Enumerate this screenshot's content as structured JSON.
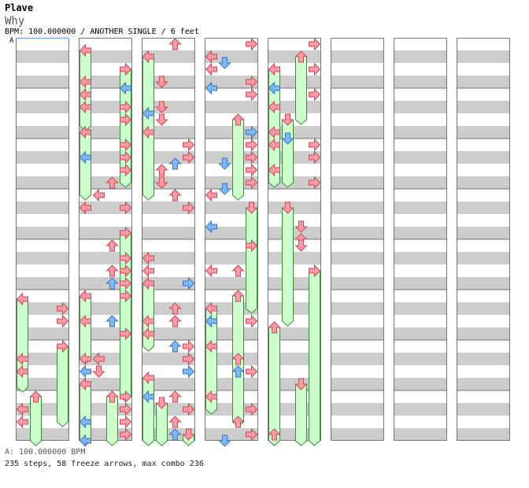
{
  "header": {
    "artist": "Plave",
    "song": "Why",
    "info": "BPM: 100.000000 / ANOTHER SINGLE / 6 feet",
    "bpm_marker": "A"
  },
  "footer": {
    "bpm_line": "A: 100.000000 BPM",
    "stats_line": "235 steps, 58 freeze arrows, max combo 236"
  },
  "colors": {
    "stripe": "#cccccc",
    "border": "#777777",
    "arrow_red": "#ff9aa6",
    "arrow_red_stroke": "#c44b5a",
    "arrow_blue": "#7fb8f5",
    "arrow_blue_stroke": "#3a74c0",
    "freeze_fill": "#ccffcc",
    "freeze_stroke": "#3c8a3c",
    "bpm_line": "#7eb0e8"
  },
  "chart_data": {
    "type": "step-chart",
    "columns": 8,
    "measures_per_column": 8,
    "lanes": [
      "left",
      "down",
      "up",
      "right"
    ],
    "rows_per_measure": 16,
    "total_steps": 235,
    "freeze_arrows": 58,
    "max_combo": 236,
    "notes": [
      {
        "c": 0,
        "lane": 0,
        "row": 83,
        "type": "red",
        "dir": "left",
        "hold": 7
      },
      {
        "c": 0,
        "lane": 3,
        "row": 86,
        "type": "red",
        "dir": "right"
      },
      {
        "c": 0,
        "lane": 3,
        "row": 90,
        "type": "red",
        "dir": "right"
      },
      {
        "c": 0,
        "lane": 3,
        "row": 98,
        "type": "red",
        "dir": "right",
        "hold": 6
      },
      {
        "c": 0,
        "lane": 0,
        "row": 102,
        "type": "red",
        "dir": "left"
      },
      {
        "c": 0,
        "lane": 0,
        "row": 106,
        "type": "red",
        "dir": "left"
      },
      {
        "c": 0,
        "lane": 1,
        "row": 114,
        "type": "red",
        "dir": "up",
        "hold": 5
      },
      {
        "c": 0,
        "lane": 0,
        "row": 118,
        "type": "red",
        "dir": "left"
      },
      {
        "c": 0,
        "lane": 0,
        "row": 122,
        "type": "red",
        "dir": "left"
      },
      {
        "c": 1,
        "lane": 0,
        "row": 4,
        "type": "red",
        "dir": "left",
        "hold": 6
      },
      {
        "c": 1,
        "lane": 3,
        "row": 10,
        "type": "red",
        "dir": "right",
        "hold": 5
      },
      {
        "c": 1,
        "lane": 0,
        "row": 14,
        "type": "red",
        "dir": "left"
      },
      {
        "c": 1,
        "lane": 3,
        "row": 16,
        "type": "blue",
        "dir": "left"
      },
      {
        "c": 1,
        "lane": 0,
        "row": 18,
        "type": "red",
        "dir": "left"
      },
      {
        "c": 1,
        "lane": 0,
        "row": 22,
        "type": "red",
        "dir": "left"
      },
      {
        "c": 1,
        "lane": 3,
        "row": 22,
        "type": "red",
        "dir": "right"
      },
      {
        "c": 1,
        "lane": 3,
        "row": 26,
        "type": "red",
        "dir": "right",
        "hold": 5
      },
      {
        "c": 1,
        "lane": 0,
        "row": 30,
        "type": "red",
        "dir": "left",
        "hold": 5
      },
      {
        "c": 1,
        "lane": 3,
        "row": 34,
        "type": "red",
        "dir": "right"
      },
      {
        "c": 1,
        "lane": 0,
        "row": 38,
        "type": "blue",
        "dir": "left"
      },
      {
        "c": 1,
        "lane": 3,
        "row": 38,
        "type": "red",
        "dir": "right"
      },
      {
        "c": 1,
        "lane": 3,
        "row": 42,
        "type": "red",
        "dir": "right"
      },
      {
        "c": 1,
        "lane": 2,
        "row": 46,
        "type": "red",
        "dir": "up"
      },
      {
        "c": 1,
        "lane": 1,
        "row": 50,
        "type": "red",
        "dir": "left"
      },
      {
        "c": 1,
        "lane": 0,
        "row": 54,
        "type": "red",
        "dir": "left"
      },
      {
        "c": 1,
        "lane": 3,
        "row": 54,
        "type": "red",
        "dir": "right"
      },
      {
        "c": 1,
        "lane": 3,
        "row": 62,
        "type": "red",
        "dir": "right",
        "hold": 5
      },
      {
        "c": 1,
        "lane": 2,
        "row": 66,
        "type": "red",
        "dir": "up"
      },
      {
        "c": 1,
        "lane": 3,
        "row": 70,
        "type": "red",
        "dir": "right"
      },
      {
        "c": 1,
        "lane": 2,
        "row": 74,
        "type": "red",
        "dir": "up"
      },
      {
        "c": 1,
        "lane": 3,
        "row": 74,
        "type": "red",
        "dir": "right"
      },
      {
        "c": 1,
        "lane": 2,
        "row": 78,
        "type": "blue",
        "dir": "up"
      },
      {
        "c": 1,
        "lane": 3,
        "row": 78,
        "type": "red",
        "dir": "right"
      },
      {
        "c": 1,
        "lane": 0,
        "row": 82,
        "type": "red",
        "dir": "left",
        "hold": 5
      },
      {
        "c": 1,
        "lane": 3,
        "row": 82,
        "type": "red",
        "dir": "right",
        "hold": 5
      },
      {
        "c": 1,
        "lane": 0,
        "row": 90,
        "type": "red",
        "dir": "left"
      },
      {
        "c": 1,
        "lane": 2,
        "row": 90,
        "type": "blue",
        "dir": "up"
      },
      {
        "c": 1,
        "lane": 3,
        "row": 94,
        "type": "red",
        "dir": "right",
        "hold": 5
      },
      {
        "c": 1,
        "lane": 0,
        "row": 102,
        "type": "red",
        "dir": "left"
      },
      {
        "c": 1,
        "lane": 1,
        "row": 102,
        "type": "red",
        "dir": "left"
      },
      {
        "c": 1,
        "lane": 0,
        "row": 106,
        "type": "blue",
        "dir": "left"
      },
      {
        "c": 1,
        "lane": 1,
        "row": 106,
        "type": "red",
        "dir": "down"
      },
      {
        "c": 1,
        "lane": 0,
        "row": 110,
        "type": "red",
        "dir": "left",
        "hold": 5
      },
      {
        "c": 1,
        "lane": 2,
        "row": 114,
        "type": "red",
        "dir": "up",
        "hold": 4
      },
      {
        "c": 1,
        "lane": 3,
        "row": 114,
        "type": "red",
        "dir": "right"
      },
      {
        "c": 1,
        "lane": 3,
        "row": 118,
        "type": "red",
        "dir": "right"
      },
      {
        "c": 1,
        "lane": 0,
        "row": 122,
        "type": "blue",
        "dir": "left"
      },
      {
        "c": 1,
        "lane": 3,
        "row": 122,
        "type": "red",
        "dir": "right"
      },
      {
        "c": 1,
        "lane": 3,
        "row": 126,
        "type": "red",
        "dir": "right"
      },
      {
        "c": 1,
        "lane": 0,
        "row": 128,
        "type": "blue",
        "dir": "left"
      },
      {
        "c": 2,
        "lane": 2,
        "row": 2,
        "type": "red",
        "dir": "up"
      },
      {
        "c": 2,
        "lane": 0,
        "row": 6,
        "type": "red",
        "dir": "left",
        "hold": 9
      },
      {
        "c": 2,
        "lane": 1,
        "row": 14,
        "type": "red",
        "dir": "down"
      },
      {
        "c": 2,
        "lane": 1,
        "row": 22,
        "type": "red",
        "dir": "down"
      },
      {
        "c": 2,
        "lane": 0,
        "row": 24,
        "type": "blue",
        "dir": "left"
      },
      {
        "c": 2,
        "lane": 1,
        "row": 26,
        "type": "red",
        "dir": "down"
      },
      {
        "c": 2,
        "lane": 0,
        "row": 30,
        "type": "red",
        "dir": "left",
        "hold": 5
      },
      {
        "c": 2,
        "lane": 3,
        "row": 34,
        "type": "red",
        "dir": "right"
      },
      {
        "c": 2,
        "lane": 3,
        "row": 38,
        "type": "red",
        "dir": "right"
      },
      {
        "c": 2,
        "lane": 2,
        "row": 40,
        "type": "blue",
        "dir": "up"
      },
      {
        "c": 2,
        "lane": 1,
        "row": 42,
        "type": "red",
        "dir": "up"
      },
      {
        "c": 2,
        "lane": 1,
        "row": 46,
        "type": "red",
        "dir": "down"
      },
      {
        "c": 2,
        "lane": 2,
        "row": 50,
        "type": "red",
        "dir": "up"
      },
      {
        "c": 2,
        "lane": 3,
        "row": 54,
        "type": "red",
        "dir": "right"
      },
      {
        "c": 2,
        "lane": 0,
        "row": 70,
        "type": "red",
        "dir": "left"
      },
      {
        "c": 2,
        "lane": 0,
        "row": 74,
        "type": "red",
        "dir": "left"
      },
      {
        "c": 2,
        "lane": 3,
        "row": 78,
        "type": "blue",
        "dir": "right"
      },
      {
        "c": 2,
        "lane": 0,
        "row": 78,
        "type": "red",
        "dir": "left",
        "hold": 5
      },
      {
        "c": 2,
        "lane": 2,
        "row": 86,
        "type": "red",
        "dir": "up"
      },
      {
        "c": 2,
        "lane": 0,
        "row": 90,
        "type": "red",
        "dir": "left"
      },
      {
        "c": 2,
        "lane": 2,
        "row": 90,
        "type": "red",
        "dir": "up"
      },
      {
        "c": 2,
        "lane": 0,
        "row": 94,
        "type": "red",
        "dir": "left"
      },
      {
        "c": 2,
        "lane": 2,
        "row": 98,
        "type": "blue",
        "dir": "up"
      },
      {
        "c": 2,
        "lane": 3,
        "row": 98,
        "type": "red",
        "dir": "right"
      },
      {
        "c": 2,
        "lane": 3,
        "row": 102,
        "type": "red",
        "dir": "right"
      },
      {
        "c": 2,
        "lane": 3,
        "row": 106,
        "type": "blue",
        "dir": "right"
      },
      {
        "c": 2,
        "lane": 0,
        "row": 108,
        "type": "red",
        "dir": "left",
        "hold": 5
      },
      {
        "c": 2,
        "lane": 0,
        "row": 114,
        "type": "blue",
        "dir": "left"
      },
      {
        "c": 2,
        "lane": 1,
        "row": 116,
        "type": "red",
        "dir": "down",
        "hold": 5
      },
      {
        "c": 2,
        "lane": 2,
        "row": 114,
        "type": "red",
        "dir": "up"
      },
      {
        "c": 2,
        "lane": 3,
        "row": 118,
        "type": "red",
        "dir": "right"
      },
      {
        "c": 2,
        "lane": 2,
        "row": 122,
        "type": "red",
        "dir": "up"
      },
      {
        "c": 2,
        "lane": 2,
        "row": 126,
        "type": "blue",
        "dir": "up"
      },
      {
        "c": 2,
        "lane": 3,
        "row": 126,
        "type": "red",
        "dir": "down",
        "hold": 4
      },
      {
        "c": 3,
        "lane": 3,
        "row": 2,
        "type": "red",
        "dir": "right"
      },
      {
        "c": 3,
        "lane": 0,
        "row": 6,
        "type": "red",
        "dir": "left"
      },
      {
        "c": 3,
        "lane": 1,
        "row": 8,
        "type": "blue",
        "dir": "down"
      },
      {
        "c": 3,
        "lane": 0,
        "row": 10,
        "type": "red",
        "dir": "left"
      },
      {
        "c": 3,
        "lane": 0,
        "row": 16,
        "type": "blue",
        "dir": "left"
      },
      {
        "c": 3,
        "lane": 3,
        "row": 14,
        "type": "red",
        "dir": "right"
      },
      {
        "c": 3,
        "lane": 3,
        "row": 18,
        "type": "red",
        "dir": "right"
      },
      {
        "c": 3,
        "lane": 2,
        "row": 26,
        "type": "red",
        "dir": "up",
        "hold": 6
      },
      {
        "c": 3,
        "lane": 3,
        "row": 30,
        "type": "blue",
        "dir": "right"
      },
      {
        "c": 3,
        "lane": 3,
        "row": 34,
        "type": "red",
        "dir": "right"
      },
      {
        "c": 3,
        "lane": 3,
        "row": 38,
        "type": "red",
        "dir": "right"
      },
      {
        "c": 3,
        "lane": 1,
        "row": 40,
        "type": "blue",
        "dir": "down"
      },
      {
        "c": 3,
        "lane": 3,
        "row": 42,
        "type": "red",
        "dir": "right"
      },
      {
        "c": 3,
        "lane": 3,
        "row": 46,
        "type": "red",
        "dir": "right"
      },
      {
        "c": 3,
        "lane": 1,
        "row": 48,
        "type": "blue",
        "dir": "down"
      },
      {
        "c": 3,
        "lane": 0,
        "row": 50,
        "type": "red",
        "dir": "left"
      },
      {
        "c": 3,
        "lane": 3,
        "row": 54,
        "type": "red",
        "dir": "down",
        "hold": 8
      },
      {
        "c": 3,
        "lane": 0,
        "row": 60,
        "type": "blue",
        "dir": "left"
      },
      {
        "c": 3,
        "lane": 3,
        "row": 66,
        "type": "red",
        "dir": "right"
      },
      {
        "c": 3,
        "lane": 0,
        "row": 74,
        "type": "red",
        "dir": "left"
      },
      {
        "c": 3,
        "lane": 2,
        "row": 74,
        "type": "red",
        "dir": "up"
      },
      {
        "c": 3,
        "lane": 2,
        "row": 82,
        "type": "red",
        "dir": "up",
        "hold": 5
      },
      {
        "c": 3,
        "lane": 0,
        "row": 86,
        "type": "red",
        "dir": "left",
        "hold": 5
      },
      {
        "c": 3,
        "lane": 0,
        "row": 90,
        "type": "blue",
        "dir": "left"
      },
      {
        "c": 3,
        "lane": 3,
        "row": 90,
        "type": "red",
        "dir": "right"
      },
      {
        "c": 3,
        "lane": 0,
        "row": 98,
        "type": "red",
        "dir": "left",
        "hold": 5
      },
      {
        "c": 3,
        "lane": 2,
        "row": 102,
        "type": "red",
        "dir": "up",
        "hold": 5
      },
      {
        "c": 3,
        "lane": 2,
        "row": 106,
        "type": "blue",
        "dir": "up"
      },
      {
        "c": 3,
        "lane": 3,
        "row": 106,
        "type": "red",
        "dir": "right"
      },
      {
        "c": 3,
        "lane": 0,
        "row": 114,
        "type": "red",
        "dir": "left"
      },
      {
        "c": 3,
        "lane": 3,
        "row": 118,
        "type": "red",
        "dir": "right"
      },
      {
        "c": 3,
        "lane": 2,
        "row": 122,
        "type": "red",
        "dir": "up"
      },
      {
        "c": 3,
        "lane": 3,
        "row": 126,
        "type": "red",
        "dir": "right"
      },
      {
        "c": 3,
        "lane": 1,
        "row": 128,
        "type": "blue",
        "dir": "down"
      },
      {
        "c": 4,
        "lane": 3,
        "row": 2,
        "type": "red",
        "dir": "right"
      },
      {
        "c": 4,
        "lane": 2,
        "row": 6,
        "type": "red",
        "dir": "up",
        "hold": 5
      },
      {
        "c": 4,
        "lane": 0,
        "row": 10,
        "type": "red",
        "dir": "left",
        "hold": 5
      },
      {
        "c": 4,
        "lane": 3,
        "row": 10,
        "type": "red",
        "dir": "right"
      },
      {
        "c": 4,
        "lane": 0,
        "row": 16,
        "type": "blue",
        "dir": "left"
      },
      {
        "c": 4,
        "lane": 3,
        "row": 18,
        "type": "red",
        "dir": "right"
      },
      {
        "c": 4,
        "lane": 0,
        "row": 22,
        "type": "red",
        "dir": "left",
        "hold": 6
      },
      {
        "c": 4,
        "lane": 1,
        "row": 26,
        "type": "red",
        "dir": "down",
        "hold": 5
      },
      {
        "c": 4,
        "lane": 0,
        "row": 30,
        "type": "red",
        "dir": "left"
      },
      {
        "c": 4,
        "lane": 1,
        "row": 32,
        "type": "blue",
        "dir": "down"
      },
      {
        "c": 4,
        "lane": 0,
        "row": 34,
        "type": "red",
        "dir": "left"
      },
      {
        "c": 4,
        "lane": 3,
        "row": 34,
        "type": "red",
        "dir": "right"
      },
      {
        "c": 4,
        "lane": 3,
        "row": 38,
        "type": "red",
        "dir": "right"
      },
      {
        "c": 4,
        "lane": 3,
        "row": 46,
        "type": "red",
        "dir": "right"
      },
      {
        "c": 4,
        "lane": 0,
        "row": 42,
        "type": "red",
        "dir": "left"
      },
      {
        "c": 4,
        "lane": 1,
        "row": 54,
        "type": "red",
        "dir": "down",
        "hold": 9
      },
      {
        "c": 4,
        "lane": 2,
        "row": 60,
        "type": "red",
        "dir": "down"
      },
      {
        "c": 4,
        "lane": 2,
        "row": 64,
        "type": "red",
        "dir": "up"
      },
      {
        "c": 4,
        "lane": 2,
        "row": 66,
        "type": "red",
        "dir": "down"
      },
      {
        "c": 4,
        "lane": 3,
        "row": 74,
        "type": "red",
        "dir": "right",
        "hold": 16
      },
      {
        "c": 4,
        "lane": 0,
        "row": 92,
        "type": "red",
        "dir": "up",
        "hold": 16
      },
      {
        "c": 4,
        "lane": 2,
        "row": 110,
        "type": "red",
        "dir": "down",
        "hold": 15
      },
      {
        "c": 4,
        "lane": 0,
        "row": 126,
        "type": "red",
        "dir": "up",
        "hold": 10
      }
    ]
  }
}
